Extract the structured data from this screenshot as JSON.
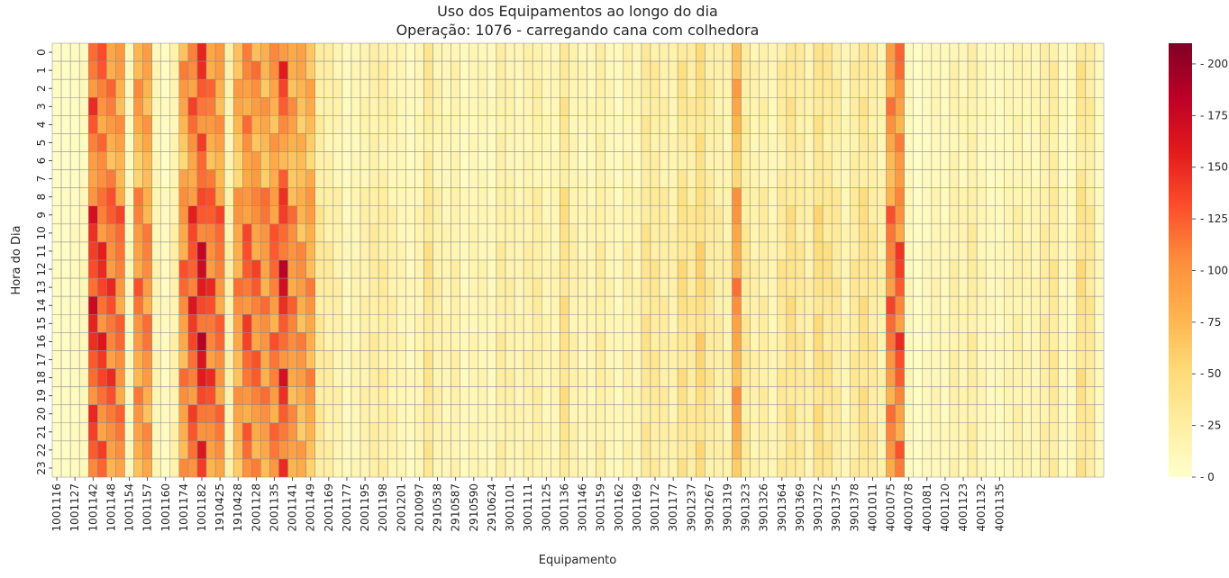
{
  "chart_data": {
    "type": "heatmap",
    "title": "Uso dos Equipamentos ao longo do dia",
    "subtitle": "Operação: 1076 - carregando cana com colhedora",
    "xlabel": "Equipamento",
    "ylabel": "Hora do Dia",
    "x_tick_labels": [
      "1001116",
      "1001127",
      "1001142",
      "1001148",
      "1001154",
      "1001157",
      "1001160",
      "1001174",
      "1001182",
      "1910425",
      "1910428",
      "2001128",
      "2001135",
      "2001141",
      "2001149",
      "2001169",
      "2001177",
      "2001195",
      "2001198",
      "2001201",
      "2010097",
      "2910538",
      "2910587",
      "2910590",
      "2910624",
      "3001101",
      "3001111",
      "3001125",
      "3001136",
      "3001146",
      "3001159",
      "3001162",
      "3001169",
      "3001172",
      "3001177",
      "3901237",
      "3901267",
      "3901319",
      "3901323",
      "3901326",
      "3901364",
      "3901369",
      "3901372",
      "3901375",
      "3901378",
      "4001011",
      "4001075",
      "4001078",
      "4001081",
      "4001120",
      "4001123",
      "4001132",
      "4001135"
    ],
    "y_tick_labels": [
      "0",
      "1",
      "2",
      "3",
      "4",
      "5",
      "6",
      "7",
      "8",
      "9",
      "10",
      "11",
      "12",
      "13",
      "14",
      "15",
      "16",
      "17",
      "18",
      "19",
      "20",
      "21",
      "22",
      "23"
    ],
    "num_columns": 116,
    "colorbar": {
      "colormap": "YlOrRd",
      "range": [
        0,
        210
      ],
      "ticks": [
        0,
        25,
        50,
        75,
        100,
        125,
        150,
        175,
        200
      ]
    },
    "column_profile": [
      5,
      5,
      8,
      10,
      140,
      130,
      120,
      110,
      10,
      100,
      100,
      15,
      8,
      20,
      100,
      130,
      150,
      120,
      110,
      20,
      90,
      120,
      110,
      100,
      110,
      140,
      100,
      90,
      90,
      30,
      25,
      20,
      10,
      15,
      20,
      25,
      25,
      20,
      15,
      10,
      15,
      35,
      20,
      15,
      20,
      10,
      15,
      15,
      10,
      25,
      20,
      15,
      20,
      25,
      15,
      15,
      40,
      20,
      15,
      15,
      25,
      15,
      10,
      20,
      15,
      35,
      30,
      25,
      20,
      40,
      30,
      50,
      30,
      25,
      20,
      90,
      30,
      20,
      25,
      15,
      30,
      40,
      30,
      20,
      45,
      35,
      30,
      15,
      30,
      40,
      30,
      20,
      110,
      120,
      10,
      5,
      10,
      15,
      10,
      20,
      15,
      25,
      15,
      10,
      10,
      15,
      20,
      15,
      15,
      25,
      30,
      10,
      10,
      40,
      30,
      10
    ],
    "hour_scale": [
      0.85,
      0.9,
      0.85,
      0.85,
      0.8,
      0.75,
      0.7,
      0.75,
      0.95,
      1.0,
      0.95,
      1.0,
      1.05,
      1.05,
      1.0,
      0.95,
      1.0,
      0.95,
      1.0,
      0.95,
      0.9,
      0.9,
      0.9,
      0.85
    ]
  }
}
